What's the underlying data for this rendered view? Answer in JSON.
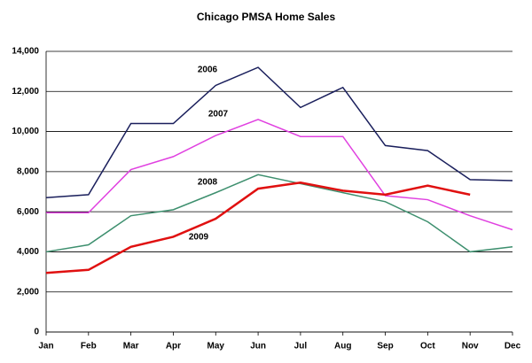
{
  "chart_data": {
    "type": "line",
    "title": "Chicago PMSA Home Sales",
    "categories": [
      "Jan",
      "Feb",
      "Mar",
      "Apr",
      "May",
      "Jun",
      "Jul",
      "Aug",
      "Sep",
      "Oct",
      "Nov",
      "Dec"
    ],
    "series": [
      {
        "name": "2006",
        "color": "#1a1f5c",
        "values": [
          6700,
          6850,
          10400,
          10400,
          12300,
          13200,
          11200,
          12200,
          9300,
          9050,
          7600,
          7550
        ]
      },
      {
        "name": "2007",
        "color": "#e040e0",
        "values": [
          5950,
          5950,
          8100,
          8750,
          9800,
          10600,
          9750,
          9750,
          6800,
          6600,
          5800,
          5100
        ]
      },
      {
        "name": "2008",
        "color": "#3d8f6e",
        "values": [
          4000,
          4350,
          5800,
          6100,
          6950,
          7850,
          7400,
          6950,
          6500,
          5500,
          4000,
          4250
        ]
      },
      {
        "name": "2009",
        "color": "#e01010",
        "values": [
          2950,
          3100,
          4250,
          4750,
          5650,
          7150,
          7450,
          7050,
          6850,
          7300,
          6850,
          null
        ]
      }
    ],
    "ylim": [
      0,
      14000
    ],
    "yticks": [
      0,
      {
        "value": 2000,
        "label": "2,000"
      },
      {
        "value": 4000,
        "label": "4,000"
      },
      {
        "value": 6000,
        "label": "6,000"
      },
      {
        "value": 8000,
        "label": "8,000"
      },
      {
        "value": 10000,
        "label": "10,000"
      },
      {
        "value": 12000,
        "label": "12,000"
      },
      {
        "value": 14000,
        "label": "14,000"
      }
    ],
    "grid": true
  }
}
